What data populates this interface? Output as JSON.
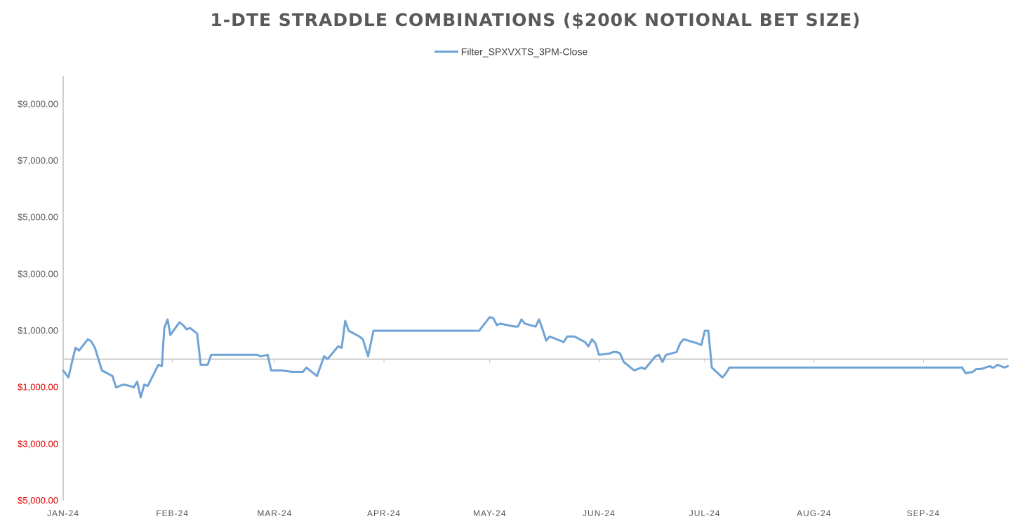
{
  "chart_data": {
    "type": "line",
    "title": "1-DTE STRADDLE COMBINATIONS ($200K NOTIONAL BET SIZE)",
    "xlabel": "",
    "ylabel": "",
    "ylim": [
      -5000,
      10000
    ],
    "grid": false,
    "legend_position": "top",
    "colors": {
      "series": "#6fa3d6",
      "negative_label": "#e00000",
      "positive_label": "#595959",
      "axis": "#bfbfbf"
    },
    "y_ticks": [
      {
        "value": 9000,
        "label": "$9,000.00"
      },
      {
        "value": 7000,
        "label": "$7,000.00"
      },
      {
        "value": 5000,
        "label": "$5,000.00"
      },
      {
        "value": 3000,
        "label": "$3,000.00"
      },
      {
        "value": 1000,
        "label": "$1,000.00"
      },
      {
        "value": -1000,
        "label": "$1,000.00"
      },
      {
        "value": -3000,
        "label": "$3,000.00"
      },
      {
        "value": -5000,
        "label": "$5,000.00"
      }
    ],
    "x_ticks": [
      {
        "day": 0,
        "label": "JAN-24"
      },
      {
        "day": 31,
        "label": "FEB-24"
      },
      {
        "day": 60,
        "label": "MAR-24"
      },
      {
        "day": 91,
        "label": "APR-24"
      },
      {
        "day": 121,
        "label": "MAY-24"
      },
      {
        "day": 152,
        "label": "JUN-24"
      },
      {
        "day": 182,
        "label": "JUL-24"
      },
      {
        "day": 213,
        "label": "AUG-24"
      },
      {
        "day": 244,
        "label": "SEP-24"
      }
    ],
    "x_range": [
      0,
      268
    ],
    "series": [
      {
        "name": "Filter_SPXVXTS_3PM-Close",
        "points": [
          [
            0,
            -400
          ],
          [
            1.5,
            -650
          ],
          [
            2.5,
            -100
          ],
          [
            3.5,
            400
          ],
          [
            4.5,
            300
          ],
          [
            7,
            700
          ],
          [
            8,
            620
          ],
          [
            9,
            400
          ],
          [
            11,
            -400
          ],
          [
            14,
            -600
          ],
          [
            15,
            -1000
          ],
          [
            16,
            -950
          ],
          [
            17,
            -900
          ],
          [
            19,
            -950
          ],
          [
            20,
            -1000
          ],
          [
            21,
            -800
          ],
          [
            22,
            -1350
          ],
          [
            23,
            -900
          ],
          [
            24,
            -950
          ],
          [
            27,
            -200
          ],
          [
            28,
            -250
          ],
          [
            28.7,
            1100
          ],
          [
            29.6,
            1400
          ],
          [
            30.4,
            850
          ],
          [
            33,
            1300
          ],
          [
            34,
            1200
          ],
          [
            35,
            1050
          ],
          [
            36,
            1100
          ],
          [
            38,
            900
          ],
          [
            39,
            -200
          ],
          [
            41,
            -200
          ],
          [
            42,
            150
          ],
          [
            55,
            150
          ],
          [
            56,
            100
          ],
          [
            58,
            150
          ],
          [
            59,
            -400
          ],
          [
            62,
            -400
          ],
          [
            65,
            -450
          ],
          [
            68,
            -450
          ],
          [
            69,
            -300
          ],
          [
            72,
            -600
          ],
          [
            74,
            100
          ],
          [
            75,
            0
          ],
          [
            78,
            450
          ],
          [
            79,
            400
          ],
          [
            80,
            1350
          ],
          [
            81,
            1000
          ],
          [
            84,
            800
          ],
          [
            85,
            700
          ],
          [
            86.5,
            100
          ],
          [
            88,
            1000
          ],
          [
            118,
            1000
          ],
          [
            121,
            1480
          ],
          [
            122,
            1450
          ],
          [
            123,
            1200
          ],
          [
            124,
            1250
          ],
          [
            128,
            1150
          ],
          [
            129,
            1150
          ],
          [
            130,
            1400
          ],
          [
            131,
            1250
          ],
          [
            134,
            1150
          ],
          [
            135,
            1400
          ],
          [
            136,
            1050
          ],
          [
            137,
            650
          ],
          [
            138,
            800
          ],
          [
            142,
            600
          ],
          [
            143,
            800
          ],
          [
            145,
            800
          ],
          [
            148,
            600
          ],
          [
            149,
            450
          ],
          [
            150,
            700
          ],
          [
            151,
            550
          ],
          [
            152,
            150
          ],
          [
            155,
            200
          ],
          [
            156,
            250
          ],
          [
            157,
            250
          ],
          [
            158,
            200
          ],
          [
            159,
            -100
          ],
          [
            162,
            -400
          ],
          [
            164,
            -300
          ],
          [
            165,
            -350
          ],
          [
            168,
            100
          ],
          [
            169,
            150
          ],
          [
            170,
            -100
          ],
          [
            171,
            150
          ],
          [
            174,
            250
          ],
          [
            175,
            550
          ],
          [
            176,
            700
          ],
          [
            180,
            550
          ],
          [
            181,
            500
          ],
          [
            182,
            1000
          ],
          [
            183,
            1000
          ],
          [
            184,
            -300
          ],
          [
            187,
            -650
          ],
          [
            188,
            -500
          ],
          [
            189,
            -300
          ],
          [
            255,
            -300
          ],
          [
            256,
            -500
          ],
          [
            258,
            -450
          ],
          [
            259,
            -350
          ],
          [
            260,
            -350
          ],
          [
            261,
            -330
          ],
          [
            262,
            -280
          ],
          [
            263,
            -250
          ],
          [
            263.5,
            -300
          ],
          [
            264,
            -300
          ],
          [
            264.5,
            -250
          ],
          [
            265,
            -200
          ],
          [
            266,
            -250
          ],
          [
            267,
            -300
          ],
          [
            268,
            -250
          ]
        ]
      }
    ]
  }
}
